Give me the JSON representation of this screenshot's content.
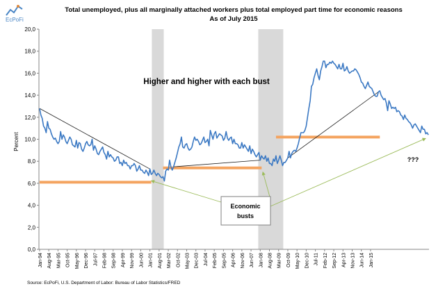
{
  "brand": {
    "name": "EcPoFi"
  },
  "chart_data": {
    "type": "line",
    "title": "Total unemployed, plus all marginally attached workers plus total employed part time for economic reasons",
    "subtitle": "As of July 2015",
    "ylabel": "Percent",
    "xlabel": "",
    "ylim": [
      0,
      20
    ],
    "yticks": [
      "0,0",
      "2,0",
      "4,0",
      "6,0",
      "8,0",
      "10,0",
      "12,0",
      "14,0",
      "16,0",
      "18,0",
      "20,0"
    ],
    "grid": false,
    "x_start": "1994-01",
    "xtick_labels": [
      "Jan-94",
      "Aug-94",
      "Mar-95",
      "Oct-95",
      "May-96",
      "Dec-96",
      "Jul-97",
      "Feb-98",
      "Sep-98",
      "Apr-99",
      "Nov-99",
      "Jun-00",
      "Jan-01",
      "Aug-01",
      "Mar-02",
      "Oct-02",
      "May-03",
      "Dec-03",
      "Jul-04",
      "Feb-05",
      "Sep-05",
      "Apr-06",
      "Nov-06",
      "Jun-07",
      "Jan-08",
      "Aug-08",
      "Mar-09",
      "Oct-09",
      "May-10",
      "Dec-10",
      "Jul-11",
      "Feb-12",
      "Sep-12",
      "Apr-13",
      "Nov-13",
      "Jun-14",
      "Jan-15"
    ],
    "recessions": [
      {
        "start": "2001-03",
        "end": "2001-11"
      },
      {
        "start": "2007-12",
        "end": "2009-06"
      }
    ],
    "floor_levels": [
      {
        "value": 6.1,
        "start": "1994-01",
        "end": "2001-01"
      },
      {
        "value": 7.4,
        "start": "2001-11",
        "end": "2008-01"
      },
      {
        "value": 10.2,
        "start": "2009-01",
        "end": "2015-07"
      }
    ],
    "series": [
      {
        "color": "#3a78c3",
        "values": [
          12.8,
          12.2,
          11.9,
          11.2,
          11.0,
          10.6,
          11.6,
          11.0,
          10.9,
          10.5,
          10.2,
          10.0,
          10.1,
          9.8,
          9.6,
          9.8,
          10.7,
          10.0,
          10.4,
          10.2,
          9.8,
          9.6,
          9.9,
          10.2,
          10.0,
          9.5,
          9.4,
          9.3,
          9.9,
          9.2,
          9.7,
          9.6,
          9.1,
          8.9,
          9.2,
          9.6,
          9.8,
          9.5,
          9.4,
          9.5,
          10.0,
          9.0,
          9.4,
          9.1,
          8.7,
          8.6,
          8.9,
          9.1,
          9.3,
          8.8,
          8.6,
          8.2,
          8.9,
          8.4,
          8.6,
          8.4,
          8.3,
          8.0,
          8.1,
          8.4,
          8.4,
          7.8,
          7.9,
          7.6,
          8.1,
          7.8,
          7.9,
          7.6,
          7.6,
          7.3,
          7.6,
          7.6,
          7.8,
          7.6,
          7.1,
          7.3,
          7.6,
          7.2,
          7.2,
          7.0,
          6.9,
          7.2,
          7.0,
          6.7,
          7.3,
          6.8,
          6.9,
          7.2,
          6.9,
          6.7,
          6.9,
          6.8,
          6.6,
          6.5,
          6.6,
          6.2,
          7.1,
          7.3,
          7.2,
          8.1,
          7.5,
          7.2,
          7.5,
          7.9,
          8.3,
          8.8,
          9.3,
          9.6,
          10.2,
          9.3,
          9.2,
          9.5,
          9.6,
          9.2,
          9.0,
          9.1,
          9.3,
          9.8,
          10.2,
          9.9,
          10.0,
          9.8,
          9.5,
          9.6,
          9.9,
          10.2,
          9.7,
          9.8,
          10.0,
          9.4,
          10.8,
          10.4,
          10.0,
          10.5,
          10.7,
          10.1,
          10.3,
          10.5,
          10.4,
          10.3,
          9.9,
          10.1,
          10.7,
          10.1,
          9.9,
          10.1,
          10.2,
          9.6,
          10.0,
          9.6,
          9.6,
          9.5,
          9.2,
          9.2,
          9.7,
          9.2,
          9.5,
          9.3,
          9.1,
          8.9,
          9.4,
          8.7,
          9.1,
          8.9,
          8.6,
          8.4,
          8.6,
          8.8,
          8.1,
          8.5,
          8.3,
          8.2,
          8.5,
          8.0,
          8.3,
          7.8,
          7.8,
          7.6,
          8.2,
          8.0,
          8.5,
          7.8,
          8.1,
          8.5,
          8.1,
          7.6,
          7.9,
          7.9,
          8.1,
          8.3,
          8.9,
          8.3,
          8.7,
          8.9,
          9.0,
          8.9,
          9.2,
          9.6,
          10.1,
          10.6,
          10.6,
          10.6,
          10.8,
          11.2,
          12.0,
          12.8,
          13.5,
          14.8,
          15.0,
          15.6,
          16.0,
          16.4,
          15.8,
          15.4,
          16.2,
          16.6,
          17.1,
          17.1,
          16.5,
          16.8,
          16.8,
          17.0,
          16.9,
          17.1,
          16.9,
          16.8,
          16.6,
          16.4,
          16.8,
          16.4,
          16.4,
          16.9,
          16.2,
          16.3,
          16.6,
          16.2,
          16.0,
          16.1,
          16.2,
          16.2,
          16.4,
          16.3,
          16.1,
          15.9,
          15.6,
          15.2,
          15.1,
          14.8,
          14.6,
          14.9,
          15.2,
          14.8,
          14.7,
          14.6,
          14.3,
          14.0,
          13.9,
          13.9,
          14.3,
          14.4,
          14.0,
          13.8,
          13.6,
          13.7,
          13.3,
          12.6,
          13.5,
          13.2,
          12.8,
          12.9,
          12.8,
          12.9,
          12.5,
          12.6,
          12.5,
          12.2,
          12.1,
          11.8,
          12.2,
          11.9,
          11.8,
          11.6,
          11.5,
          11.3,
          11.0,
          11.3,
          11.4,
          11.2,
          11.0,
          10.8,
          10.6,
          11.2,
          10.9,
          10.9,
          10.5,
          10.6,
          10.4
        ]
      }
    ],
    "annotations": [
      {
        "text": "Higher and higher with each bust"
      },
      {
        "text": "Economic busts"
      },
      {
        "text": "???"
      }
    ],
    "source": "Source: EcPoFi, U.S. Department of Labor: Bureau of Labor Statistics/FRED"
  }
}
